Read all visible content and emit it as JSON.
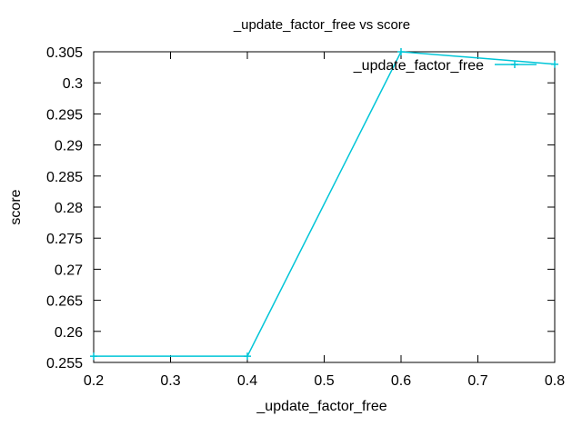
{
  "chart_data": {
    "type": "line",
    "title": "_update_factor_free vs score",
    "xlabel": "_update_factor_free",
    "ylabel": "score",
    "xlim": [
      0.2,
      0.8
    ],
    "ylim": [
      0.255,
      0.305
    ],
    "x_ticks": [
      0.2,
      0.3,
      0.4,
      0.5,
      0.6,
      0.7,
      0.8
    ],
    "x_tick_labels": [
      "0.2",
      "0.3",
      "0.4",
      "0.5",
      "0.6",
      "0.7",
      "0.8"
    ],
    "y_ticks": [
      0.255,
      0.26,
      0.265,
      0.27,
      0.275,
      0.28,
      0.285,
      0.29,
      0.295,
      0.3,
      0.305
    ],
    "y_tick_labels": [
      "0.255",
      "0.26",
      "0.265",
      "0.27",
      "0.275",
      "0.28",
      "0.285",
      "0.29",
      "0.295",
      "0.3",
      "0.305"
    ],
    "grid": false,
    "legend_position": "top-right",
    "series": [
      {
        "name": "_update_factor_free",
        "color": "#00c5d7",
        "marker": "plus",
        "x": [
          0.2,
          0.4,
          0.6,
          0.8
        ],
        "y": [
          0.256,
          0.256,
          0.305,
          0.303
        ]
      }
    ]
  }
}
